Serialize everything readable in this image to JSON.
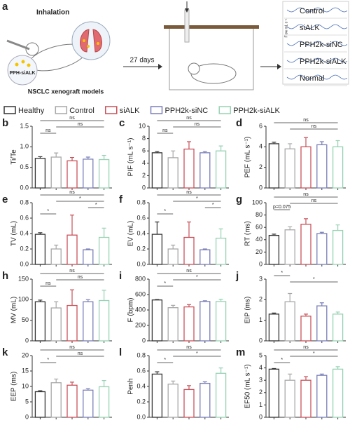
{
  "schematic": {
    "panel": "a",
    "inhalation": "Inhalation",
    "drug": "PPH-siALK",
    "model": "NSCLC xenograft models",
    "duration": "27 days",
    "trace_axis": "Flow mL s⁻¹",
    "traces": [
      "Control",
      "siALK",
      "PPH2k-siNC",
      "PPH2k-siALK",
      "Normal"
    ]
  },
  "legend": [
    {
      "name": "Healthy",
      "color": "#333333"
    },
    {
      "name": "Control",
      "color": "#a8a8a8"
    },
    {
      "name": "siALK",
      "color": "#c8525a"
    },
    {
      "name": "PPH2k-siNC",
      "color": "#7a7fb8"
    },
    {
      "name": "PPH2k-siALK",
      "color": "#98d2b4"
    }
  ],
  "chart_data": [
    {
      "type": "bar",
      "panel": "b",
      "ylabel": "Ti/Te",
      "ylim": [
        0,
        1.5
      ],
      "yticks": [
        {
          "value": 0,
          "label": "0.0"
        },
        0.5,
        {
          "value": 1,
          "label": "1.0"
        },
        1.5
      ],
      "values": [
        0.72,
        0.75,
        0.66,
        0.7,
        0.69
      ],
      "errors": [
        0.04,
        0.1,
        0.08,
        0.05,
        0.1
      ],
      "brackets": [
        {
          "label": "ns",
          "groups": [
            0,
            1
          ]
        },
        {
          "label": "ns",
          "groups": [
            1,
            4
          ]
        },
        {
          "label": "ns",
          "groups": [
            0,
            4
          ]
        }
      ]
    },
    {
      "type": "bar",
      "panel": "c",
      "ylabel": "PIF (mL s⁻¹)",
      "ylim": [
        0,
        10
      ],
      "yticks": [
        0,
        2,
        4,
        6,
        8,
        10
      ],
      "values": [
        5.7,
        4.9,
        6.3,
        5.7,
        6.0
      ],
      "errors": [
        0.2,
        1.1,
        1.2,
        0.2,
        0.8
      ],
      "brackets": [
        {
          "label": "ns",
          "groups": [
            0,
            1
          ]
        },
        {
          "label": "ns",
          "groups": [
            1,
            4
          ]
        },
        {
          "label": "ns",
          "groups": [
            0,
            4
          ]
        }
      ]
    },
    {
      "type": "bar",
      "panel": "d",
      "ylabel": "PEF (mL s⁻¹)",
      "ylim": [
        0,
        6
      ],
      "yticks": [
        0,
        2,
        4,
        6
      ],
      "values": [
        4.3,
        3.8,
        4.0,
        4.2,
        4.0
      ],
      "errors": [
        0.15,
        0.5,
        0.9,
        0.3,
        0.6
      ],
      "brackets": [
        {
          "label": "ns",
          "groups": [
            1,
            4
          ]
        },
        {
          "label": "ns",
          "groups": [
            0,
            4
          ]
        }
      ]
    },
    {
      "type": "bar",
      "panel": "e",
      "ylabel": "TV (mL)",
      "ylim": [
        0,
        0.8
      ],
      "yticks": [
        {
          "value": 0,
          "label": "0.0"
        },
        0.2,
        0.4,
        0.6,
        0.8
      ],
      "values": [
        0.39,
        0.2,
        0.38,
        0.19,
        0.35
      ],
      "errors": [
        0.02,
        0.05,
        0.26,
        0.01,
        0.12
      ],
      "brackets": [
        {
          "label": "*",
          "groups": [
            0,
            1
          ]
        },
        {
          "label": "*",
          "groups": [
            3,
            4
          ]
        },
        {
          "label": "*",
          "groups": [
            1,
            4
          ]
        },
        {
          "label": "ns",
          "groups": [
            0,
            4
          ]
        }
      ]
    },
    {
      "type": "bar",
      "panel": "f",
      "ylabel": "EV (mL)",
      "ylim": [
        0,
        0.8
      ],
      "yticks": [
        {
          "value": 0,
          "label": "0.0"
        },
        0.2,
        0.4,
        0.6,
        0.8
      ],
      "values": [
        0.39,
        0.2,
        0.35,
        0.19,
        0.34
      ],
      "errors": [
        0.16,
        0.05,
        0.2,
        0.01,
        0.12
      ],
      "brackets": [
        {
          "label": "*",
          "groups": [
            0,
            1
          ]
        },
        {
          "label": "*",
          "groups": [
            3,
            4
          ]
        },
        {
          "label": "*",
          "groups": [
            1,
            4
          ]
        },
        {
          "label": "ns",
          "groups": [
            0,
            4
          ]
        }
      ]
    },
    {
      "type": "bar",
      "panel": "g",
      "ylabel": "RT (ms)",
      "ylim": [
        0,
        100
      ],
      "yticks": [
        0,
        20,
        40,
        60,
        80,
        100
      ],
      "values": [
        47,
        56,
        65,
        50,
        55
      ],
      "errors": [
        2,
        5,
        9,
        2,
        9
      ],
      "brackets": [
        {
          "label": "p=0.075",
          "groups": [
            0,
            1
          ]
        },
        {
          "label": "ns",
          "groups": [
            1,
            4
          ]
        },
        {
          "label": "ns",
          "groups": [
            0,
            4
          ]
        }
      ]
    },
    {
      "type": "bar",
      "panel": "h",
      "ylabel": "MV (mL)",
      "ylim": [
        0,
        150
      ],
      "yticks": [
        0,
        50,
        100,
        150
      ],
      "values": [
        95,
        80,
        86,
        95,
        98
      ],
      "errors": [
        4,
        15,
        38,
        5,
        25
      ],
      "brackets": [
        {
          "label": "ns",
          "groups": [
            0,
            1
          ]
        },
        {
          "label": "ns",
          "groups": [
            1,
            4
          ]
        },
        {
          "label": "ns",
          "groups": [
            0,
            4
          ]
        }
      ]
    },
    {
      "type": "bar",
      "panel": "i",
      "ylabel": "F (bpm)",
      "ylim": [
        0,
        800
      ],
      "yticks": [
        0,
        200,
        400,
        600,
        800
      ],
      "values": [
        530,
        430,
        440,
        510,
        510
      ],
      "errors": [
        5,
        30,
        30,
        10,
        30
      ],
      "brackets": [
        {
          "label": "*",
          "groups": [
            0,
            1
          ]
        },
        {
          "label": "*",
          "groups": [
            1,
            4
          ]
        },
        {
          "label": "ns",
          "groups": [
            0,
            4
          ]
        }
      ]
    },
    {
      "type": "bar",
      "panel": "j",
      "ylabel": "EIP (ms)",
      "ylim": [
        0,
        3
      ],
      "yticks": [
        0,
        1,
        2,
        3
      ],
      "values": [
        1.3,
        1.9,
        1.2,
        1.7,
        1.3
      ],
      "errors": [
        0.05,
        0.4,
        0.1,
        0.15,
        0.1
      ],
      "brackets": [
        {
          "label": "*",
          "groups": [
            1,
            4
          ]
        },
        {
          "label": "*",
          "groups": [
            0,
            1
          ]
        }
      ]
    },
    {
      "type": "bar",
      "panel": "k",
      "ylabel": "EEP (ms)",
      "ylim": [
        0,
        20
      ],
      "yticks": [
        0,
        5,
        10,
        15,
        20
      ],
      "values": [
        8.3,
        11.2,
        10.4,
        8.8,
        9.9
      ],
      "errors": [
        0.3,
        1.2,
        1,
        0.5,
        2
      ],
      "brackets": [
        {
          "label": "*",
          "groups": [
            0,
            1
          ]
        },
        {
          "label": "ns",
          "groups": [
            1,
            4
          ]
        },
        {
          "label": "ns",
          "groups": [
            0,
            4
          ]
        }
      ]
    },
    {
      "type": "bar",
      "panel": "l",
      "ylabel": "Penh",
      "ylim": [
        0,
        0.8
      ],
      "yticks": [
        {
          "value": 0,
          "label": "0.0"
        },
        0.2,
        0.4,
        0.6,
        0.8
      ],
      "values": [
        0.56,
        0.43,
        0.36,
        0.44,
        0.57
      ],
      "errors": [
        0.03,
        0.04,
        0.05,
        0.02,
        0.07
      ],
      "brackets": [
        {
          "label": "*",
          "groups": [
            0,
            1
          ]
        },
        {
          "label": "*",
          "groups": [
            1,
            4
          ]
        },
        {
          "label": "ns",
          "groups": [
            0,
            4
          ]
        }
      ]
    },
    {
      "type": "bar",
      "panel": "m",
      "ylabel": "EF50 (mL s⁻¹)",
      "ylim": [
        0,
        5
      ],
      "yticks": [
        0,
        1,
        2,
        3,
        4,
        5
      ],
      "values": [
        3.9,
        3.0,
        3.0,
        3.4,
        3.9
      ],
      "errors": [
        0.05,
        0.5,
        0.3,
        0.1,
        0.2
      ],
      "brackets": [
        {
          "label": "*",
          "groups": [
            0,
            1
          ]
        },
        {
          "label": "*",
          "groups": [
            1,
            4
          ]
        },
        {
          "label": "ns",
          "groups": [
            0,
            4
          ]
        }
      ]
    }
  ]
}
